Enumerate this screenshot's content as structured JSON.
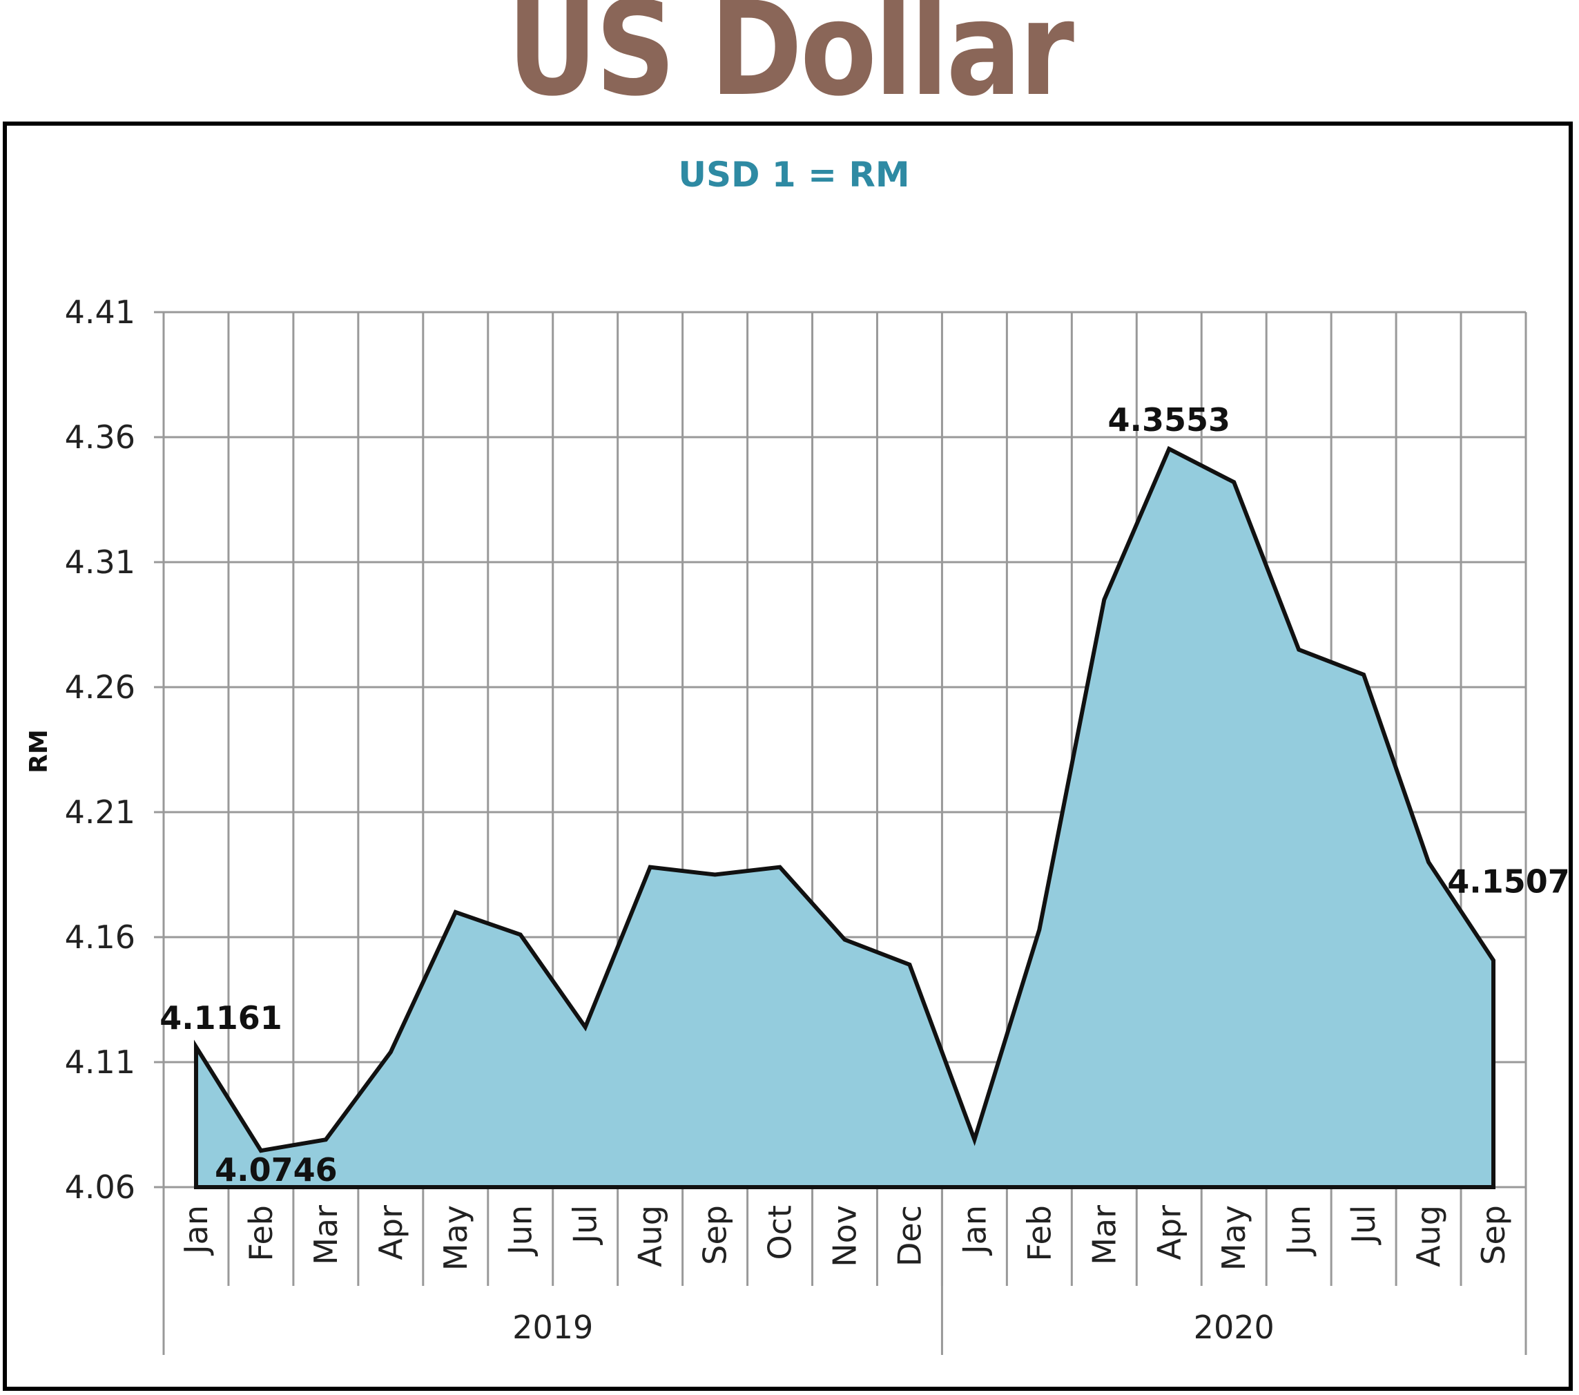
{
  "title": "US Dollar",
  "colors": {
    "title": "#8a6658",
    "subtitle": "#2e8aa3",
    "area_fill": "#94ccdd",
    "line": "#111111",
    "grid": "#999999"
  },
  "chart_data": {
    "type": "area",
    "subtitle": "USD 1 = RM",
    "ylabel": "RM",
    "xlabel": "",
    "ylim": [
      4.06,
      4.41
    ],
    "yticks": [
      "4.06",
      "4.11",
      "4.16",
      "4.21",
      "4.26",
      "4.31",
      "4.36",
      "4.41"
    ],
    "grid": true,
    "categories": [
      "Jan",
      "Feb",
      "Mar",
      "Apr",
      "May",
      "Jun",
      "Jul",
      "Aug",
      "Sep",
      "Oct",
      "Nov",
      "Dec",
      "Jan",
      "Feb",
      "Mar",
      "Apr",
      "May",
      "Jun",
      "Jul",
      "Aug",
      "Sep"
    ],
    "groups": [
      {
        "label": "2019",
        "count": 12
      },
      {
        "label": "2020",
        "count": 9
      }
    ],
    "series": [
      {
        "values": [
          4.1161,
          4.0746,
          4.079,
          4.114,
          4.17,
          4.161,
          4.124,
          4.188,
          4.185,
          4.188,
          4.159,
          4.149,
          4.079,
          4.163,
          4.295,
          4.3553,
          4.342,
          4.275,
          4.265,
          4.19,
          4.1507
        ]
      }
    ],
    "data_labels": [
      {
        "index": 0,
        "text": "4.1161",
        "position": "above"
      },
      {
        "index": 1,
        "text": "4.0746",
        "position": "below"
      },
      {
        "index": 15,
        "text": "4.3553",
        "position": "above"
      },
      {
        "index": 20,
        "text": "4.1507",
        "position": "above"
      }
    ]
  }
}
